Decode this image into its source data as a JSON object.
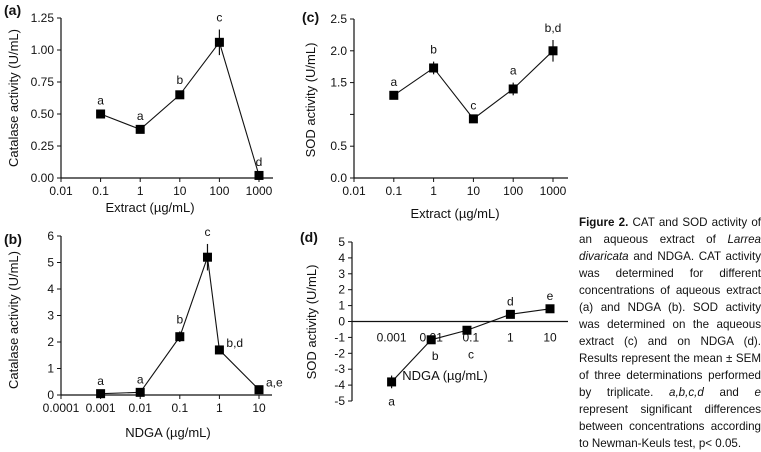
{
  "chart_data": [
    {
      "panel": "(a)",
      "type": "line",
      "xscale": "log",
      "xlabel": "Extract (µg/mL)",
      "ylabel": "Catalase activity  (U/mL)",
      "xticks": [
        0.01,
        0.1,
        1,
        10,
        100,
        1000
      ],
      "xtick_labels": [
        "0.01",
        "0.1",
        "1",
        "10",
        "100",
        "1000"
      ],
      "yticks": [
        0,
        0.25,
        0.5,
        0.75,
        1.0,
        1.25
      ],
      "ytick_labels": [
        "0.00",
        "0.25",
        "0.50",
        "0.75",
        "1.00",
        "1.25"
      ],
      "ylim": [
        0,
        1.25
      ],
      "xlim": [
        0.01,
        2200
      ],
      "x": [
        0.1,
        1,
        10,
        100,
        1000
      ],
      "y": [
        0.5,
        0.38,
        0.65,
        1.06,
        0.02
      ],
      "errors": [
        0.01,
        0.01,
        0.02,
        0.1,
        0.01
      ],
      "point_labels": [
        "a",
        "a",
        "b",
        "c",
        "d"
      ],
      "label_position": [
        "above",
        "above",
        "above",
        "above",
        "above"
      ]
    },
    {
      "panel": "(b)",
      "type": "line",
      "xscale": "log",
      "xlabel": "NDGA (µg/mL)",
      "ylabel": "Catalase activity  (U/mL)",
      "xticks": [
        0.0001,
        0.001,
        0.01,
        0.1,
        1,
        10
      ],
      "xtick_labels": [
        "0.0001",
        "0.001",
        "0.01",
        "0.1",
        "1",
        "10"
      ],
      "yticks": [
        0,
        1,
        2,
        3,
        4,
        5,
        6
      ],
      "ytick_labels": [
        "0",
        "1",
        "2",
        "3",
        "4",
        "5",
        "6"
      ],
      "ylim": [
        0,
        6
      ],
      "xlim": [
        0.0001,
        22
      ],
      "x": [
        0.001,
        0.01,
        0.1,
        0.5,
        1,
        10
      ],
      "y": [
        0.05,
        0.1,
        2.2,
        5.2,
        1.7,
        0.2
      ],
      "errors": [
        0.02,
        0.03,
        0.2,
        0.5,
        0.05,
        0.05
      ],
      "point_labels": [
        "a",
        "a",
        "b",
        "c",
        "b,d",
        "a,e"
      ],
      "label_position": [
        "above",
        "above",
        "above",
        "above",
        "right",
        "right"
      ]
    },
    {
      "panel": "(c)",
      "type": "line",
      "xscale": "log",
      "xlabel": "Extract (µg/mL)",
      "ylabel": "SOD activity  (U/mL)",
      "xticks": [
        0.01,
        0.1,
        1,
        10,
        100,
        1000
      ],
      "xtick_labels": [
        "0.01",
        "0.1",
        "1",
        "10",
        "100",
        "1000"
      ],
      "yticks": [
        0,
        0.5,
        1.0,
        1.5,
        2.0,
        2.5
      ],
      "ytick_labels": [
        "0.0",
        "0.5",
        "",
        "1.5",
        "2.0",
        "2.5"
      ],
      "ylim": [
        0,
        2.5
      ],
      "xlim": [
        0.01,
        2200
      ],
      "x": [
        0.1,
        1,
        10,
        100,
        1000
      ],
      "y": [
        1.3,
        1.73,
        0.93,
        1.4,
        2.0
      ],
      "errors": [
        0.02,
        0.1,
        0.02,
        0.1,
        0.17
      ],
      "point_labels": [
        "a",
        "b",
        "c",
        "a",
        "b,d"
      ],
      "label_position": [
        "above",
        "above",
        "above",
        "above",
        "above"
      ]
    },
    {
      "panel": "(d)",
      "type": "line",
      "xscale": "log",
      "xlabel": "NDGA (µg/mL)",
      "ylabel": "SOD activity  (U/mL)",
      "xticks": [
        0.001,
        0.01,
        0.1,
        1,
        10
      ],
      "xtick_labels": [
        "0.001",
        "0.01",
        "0.1",
        "1",
        "10"
      ],
      "yticks": [
        -5,
        -4,
        -3,
        -2,
        -1,
        0,
        1,
        2,
        3,
        4,
        5
      ],
      "ytick_labels": [
        "-5",
        "-4",
        "-3",
        "-2",
        "-1",
        "0",
        "1",
        "2",
        "3",
        "4",
        "5"
      ],
      "ylim": [
        -5,
        5
      ],
      "xlim": [
        0.0001,
        25
      ],
      "x": [
        0.001,
        0.01,
        0.08,
        1,
        10
      ],
      "y": [
        -3.8,
        -1.15,
        -0.55,
        0.45,
        0.8
      ],
      "errors": [
        0.4,
        0.2,
        0.05,
        0.05,
        0.05
      ],
      "point_labels": [
        "a",
        "b",
        "c",
        "d",
        "e"
      ],
      "label_position": [
        "below",
        "below",
        "below",
        "above",
        "above"
      ]
    }
  ],
  "caption": {
    "title": "Figure 2.",
    "t1": " CAT and SOD activity of an aqueous extract of ",
    "species": "Larrea divaricata",
    "t2": " and NDGA. CAT activ­ity was determined for different concentrations of aqueous extract (a) and NDGA (b). SOD activity was determined on the aque­ous extract (c) and on NDGA (d). Results represent the mean ± SEM of three determinations performed by triplicate. ",
    "letters": "a,b,c,d",
    "t3": " and ",
    "letter_e": "e",
    "t4": " represent significant differ­ences between concentrations according to Newman-Keuls test, p< 0.05."
  }
}
